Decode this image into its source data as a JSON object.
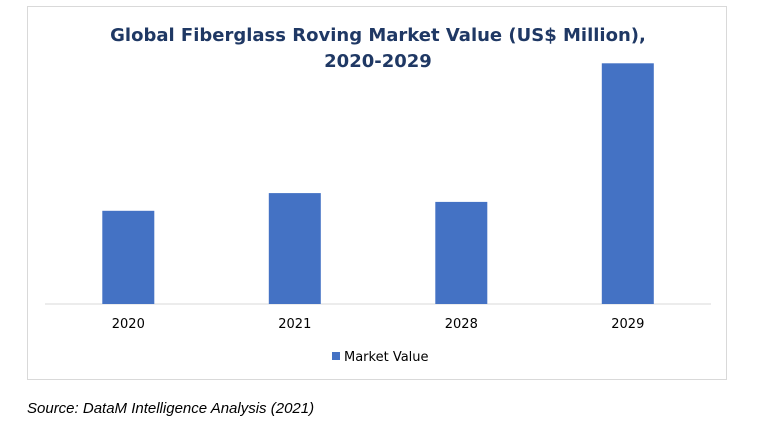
{
  "chart_data": {
    "type": "bar",
    "title": "Global Fiberglass Roving Market Value (US$ Million), 2020-2029",
    "categories": [
      "2020",
      "2021",
      "2028",
      "2029"
    ],
    "series": [
      {
        "name": "Market Value",
        "values": [
          740,
          880,
          810,
          1910
        ]
      }
    ],
    "ylim": [
      0,
      2000
    ],
    "grid": false,
    "legend": "bottom",
    "bar_color": "#4472c4"
  },
  "source": "Source: DataM Intelligence Analysis (2021)"
}
